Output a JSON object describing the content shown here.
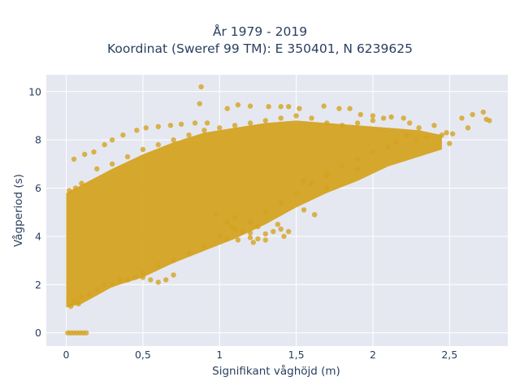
{
  "chart_data": {
    "type": "scatter",
    "title": "År 1979 - 2019",
    "subtitle": "Koordinat (Sweref 99 TM): E 350401, N 6239625",
    "xlabel": "Signifikant våghöjd (m)",
    "ylabel": "Vågperiod (s)",
    "xlim": [
      -0.13,
      2.88
    ],
    "ylim": [
      -0.55,
      10.7
    ],
    "x_ticks": [
      0,
      0.5,
      1,
      1.5,
      2,
      2.5
    ],
    "x_tick_labels": [
      "0",
      "0,5",
      "1",
      "1,5",
      "2",
      "2,5"
    ],
    "y_ticks": [
      0,
      2,
      4,
      6,
      8,
      10
    ],
    "y_tick_labels": [
      "0",
      "2",
      "4",
      "6",
      "8",
      "10"
    ],
    "grid": true,
    "marker_color": "#d4a321",
    "plot_bg": "#e5e8f1",
    "series": [
      {
        "name": "",
        "points": [
          [
            0.01,
            0
          ],
          [
            0.03,
            0
          ],
          [
            0.05,
            0
          ],
          [
            0.07,
            0
          ],
          [
            0.09,
            0
          ],
          [
            0.11,
            0
          ],
          [
            0.13,
            0
          ],
          [
            0.03,
            1.1
          ],
          [
            0.05,
            1.3
          ],
          [
            0.08,
            1.2
          ],
          [
            0.1,
            1.5
          ],
          [
            0.15,
            1.6
          ],
          [
            0.2,
            1.8
          ],
          [
            0.3,
            2.0
          ],
          [
            0.4,
            2.2
          ],
          [
            0.5,
            2.5
          ],
          [
            0.6,
            2.8
          ],
          [
            0.7,
            3.0
          ],
          [
            0.8,
            3.3
          ],
          [
            0.9,
            3.6
          ],
          [
            1.0,
            4.0
          ],
          [
            1.1,
            4.3
          ],
          [
            1.2,
            4.6
          ],
          [
            1.3,
            5.0
          ],
          [
            1.4,
            5.4
          ],
          [
            1.5,
            5.8
          ],
          [
            1.6,
            6.2
          ],
          [
            1.7,
            6.5
          ],
          [
            1.8,
            6.9
          ],
          [
            1.9,
            7.2
          ],
          [
            2.0,
            7.5
          ],
          [
            0.02,
            5.9
          ],
          [
            0.06,
            6.0
          ],
          [
            0.1,
            6.2
          ],
          [
            0.2,
            6.8
          ],
          [
            0.3,
            7.0
          ],
          [
            0.4,
            7.3
          ],
          [
            0.5,
            7.6
          ],
          [
            0.6,
            7.8
          ],
          [
            0.7,
            8.0
          ],
          [
            0.8,
            8.2
          ],
          [
            0.9,
            8.4
          ],
          [
            1.0,
            8.5
          ],
          [
            1.1,
            8.6
          ],
          [
            1.2,
            8.7
          ],
          [
            1.3,
            8.8
          ],
          [
            1.4,
            8.9
          ],
          [
            1.5,
            9.0
          ],
          [
            1.6,
            8.9
          ],
          [
            1.7,
            8.7
          ],
          [
            1.8,
            8.6
          ],
          [
            1.9,
            8.7
          ],
          [
            2.0,
            8.8
          ],
          [
            0.88,
            10.2
          ],
          [
            0.87,
            9.5
          ],
          [
            1.05,
            9.3
          ],
          [
            1.12,
            9.45
          ],
          [
            1.2,
            9.4
          ],
          [
            1.32,
            9.38
          ],
          [
            1.4,
            9.38
          ],
          [
            1.45,
            9.38
          ],
          [
            1.52,
            9.3
          ],
          [
            1.68,
            9.4
          ],
          [
            1.78,
            9.3
          ],
          [
            1.85,
            9.3
          ],
          [
            1.92,
            9.05
          ],
          [
            2.0,
            9.0
          ],
          [
            2.07,
            8.9
          ],
          [
            2.12,
            8.95
          ],
          [
            2.2,
            8.9
          ],
          [
            2.24,
            8.7
          ],
          [
            2.3,
            8.5
          ],
          [
            2.4,
            8.6
          ],
          [
            2.48,
            8.3
          ],
          [
            2.52,
            8.25
          ],
          [
            2.58,
            8.9
          ],
          [
            2.62,
            8.5
          ],
          [
            2.65,
            9.05
          ],
          [
            2.72,
            9.15
          ],
          [
            2.74,
            8.85
          ],
          [
            2.76,
            8.8
          ],
          [
            2.1,
            7.7
          ],
          [
            2.15,
            7.9
          ],
          [
            2.22,
            8.2
          ],
          [
            2.28,
            8.0
          ],
          [
            2.35,
            8.1
          ],
          [
            2.45,
            8.2
          ],
          [
            2.5,
            7.85
          ],
          [
            1.9,
            6.8
          ],
          [
            1.7,
            6.0
          ],
          [
            1.55,
            6.3
          ],
          [
            1.7,
            6.6
          ],
          [
            0.98,
            4.9
          ],
          [
            1.05,
            4.6
          ],
          [
            1.08,
            4.4
          ],
          [
            1.1,
            4.8
          ],
          [
            1.15,
            4.2
          ],
          [
            1.2,
            4.15
          ],
          [
            1.25,
            4.4
          ],
          [
            1.3,
            4.1
          ],
          [
            1.35,
            4.2
          ],
          [
            1.38,
            4.5
          ],
          [
            1.4,
            4.3
          ],
          [
            1.42,
            4.0
          ],
          [
            1.45,
            4.2
          ],
          [
            1.55,
            5.1
          ],
          [
            1.62,
            4.9
          ],
          [
            1.05,
            3.9
          ],
          [
            1.12,
            3.85
          ],
          [
            1.2,
            3.95
          ],
          [
            1.25,
            3.9
          ],
          [
            1.3,
            3.85
          ],
          [
            1.22,
            3.75
          ],
          [
            0.5,
            2.3
          ],
          [
            0.55,
            2.2
          ],
          [
            0.6,
            2.1
          ],
          [
            0.65,
            2.2
          ],
          [
            0.7,
            2.4
          ],
          [
            0.45,
            2.3
          ],
          [
            0.35,
            2.2
          ],
          [
            0.25,
            2.0
          ],
          [
            0.05,
            7.2
          ],
          [
            0.12,
            7.4
          ],
          [
            0.18,
            7.5
          ],
          [
            0.25,
            7.8
          ],
          [
            0.3,
            8.0
          ],
          [
            0.37,
            8.2
          ],
          [
            0.46,
            8.4
          ],
          [
            0.52,
            8.5
          ],
          [
            0.6,
            8.55
          ],
          [
            0.68,
            8.6
          ],
          [
            0.75,
            8.65
          ],
          [
            0.84,
            8.7
          ],
          [
            0.92,
            8.7
          ]
        ]
      }
    ]
  }
}
